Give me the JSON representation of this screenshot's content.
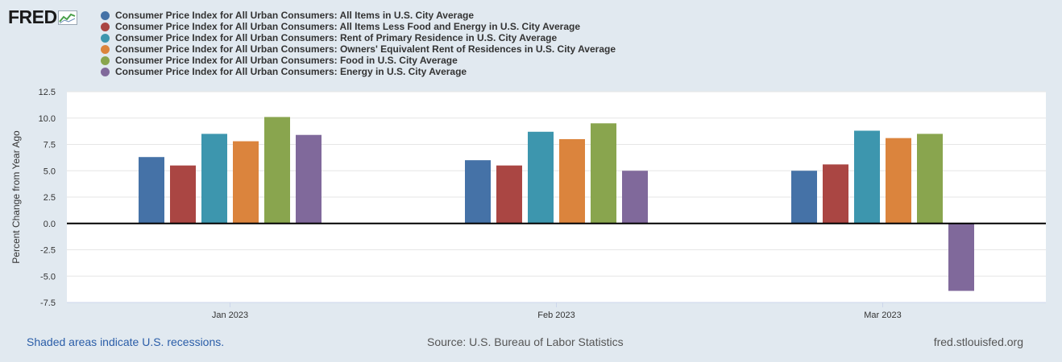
{
  "logo": {
    "text": "FRED"
  },
  "colors": {
    "background": "#e1e9f0",
    "plot_background": "#ffffff",
    "grid": "#e6e6e6",
    "zero_line": "#000000"
  },
  "chart_data": {
    "type": "bar",
    "title": "",
    "xlabel": "",
    "ylabel": "Percent Change from Year Ago",
    "ylim": [
      -7.5,
      12.5
    ],
    "yticks": [
      12.5,
      10.0,
      7.5,
      5.0,
      2.5,
      0.0,
      -2.5,
      -5.0,
      -7.5
    ],
    "yticks_labels": [
      "12.5",
      "10.0",
      "7.5",
      "5.0",
      "2.5",
      "0.0",
      "-2.5",
      "-5.0",
      "-7.5"
    ],
    "grid": true,
    "legend_position": "top-left",
    "categories": [
      "Jan 2023",
      "Feb 2023",
      "Mar 2023"
    ],
    "series": [
      {
        "name": "Consumer Price Index for All Urban Consumers: All Items in U.S. City Average",
        "color": "#4572a7",
        "values": [
          6.3,
          6.0,
          5.0
        ]
      },
      {
        "name": "Consumer Price Index for All Urban Consumers: All Items Less Food and Energy in U.S. City Average",
        "color": "#aa4643",
        "values": [
          5.5,
          5.5,
          5.6
        ]
      },
      {
        "name": "Consumer Price Index for All Urban Consumers: Rent of Primary Residence in U.S. City Average",
        "color": "#3d96ae",
        "values": [
          8.5,
          8.7,
          8.8
        ]
      },
      {
        "name": "Consumer Price Index for All Urban Consumers: Owners' Equivalent Rent of Residences in U.S. City Average",
        "color": "#db843d",
        "values": [
          7.8,
          8.0,
          8.1
        ]
      },
      {
        "name": "Consumer Price Index for All Urban Consumers: Food in U.S. City Average",
        "color": "#89a54e",
        "values": [
          10.1,
          9.5,
          8.5
        ]
      },
      {
        "name": "Consumer Price Index for All Urban Consumers: Energy in U.S. City Average",
        "color": "#80699b",
        "values": [
          8.4,
          5.0,
          -6.4
        ]
      }
    ]
  },
  "footer": {
    "recession_note": "Shaded areas indicate U.S. recessions.",
    "source": "Source: U.S. Bureau of Labor Statistics",
    "site": "fred.stlouisfed.org"
  }
}
